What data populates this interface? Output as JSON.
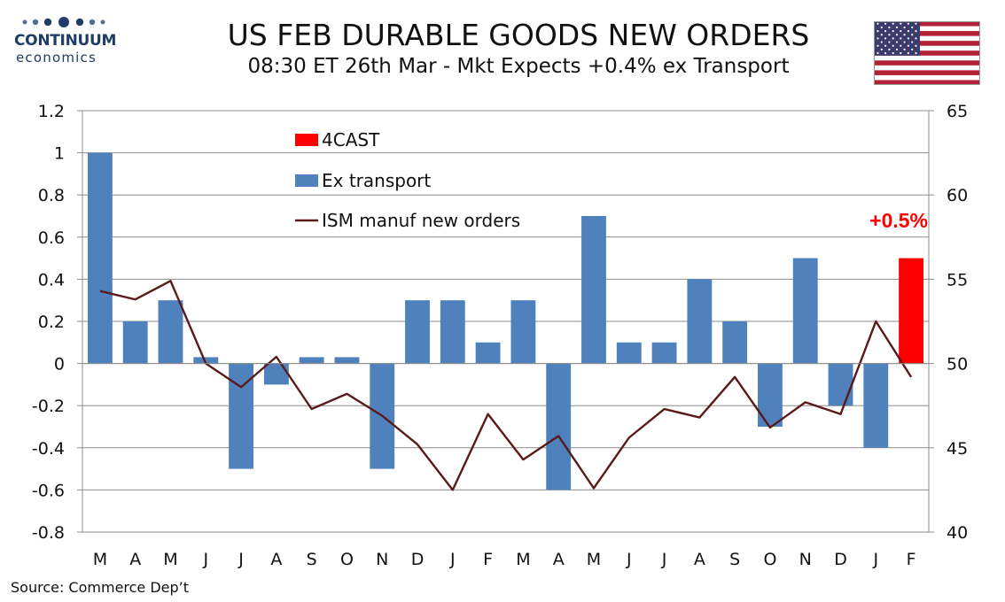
{
  "brand": {
    "name": "CONTINUUM",
    "sub": "economics"
  },
  "header": {
    "title": "US FEB DURABLE GOODS NEW ORDERS",
    "subtitle": "08:30 ET 26th Mar - Mkt Expects +0.4% ex Transport"
  },
  "source": "Source: Commerce Dep’t",
  "colors": {
    "ex_transport": "#4f81bd",
    "forecast": "#ff0000",
    "ism": "#5a1a1a",
    "annotation": "#ff0000"
  },
  "chart_data": {
    "type": "bar",
    "categories": [
      "M",
      "A",
      "M",
      "J",
      "J",
      "A",
      "S",
      "O",
      "N",
      "D",
      "J",
      "F",
      "M",
      "A",
      "M",
      "J",
      "J",
      "A",
      "S",
      "O",
      "N",
      "D",
      "J",
      "F"
    ],
    "y_left": {
      "min": -0.8,
      "max": 1.2,
      "ticks": [
        "1.2",
        "1",
        "0.8",
        "0.6",
        "0.4",
        "0.2",
        "0",
        "-0.2",
        "-0.4",
        "-0.6",
        "-0.8"
      ]
    },
    "y_right": {
      "min": 40,
      "max": 65,
      "ticks": [
        "65",
        "60",
        "55",
        "50",
        "45",
        "40"
      ]
    },
    "grid": true,
    "legend_position": "top-center",
    "series": [
      {
        "name": "4CAST",
        "type": "bar",
        "axis": "left",
        "values": [
          null,
          null,
          null,
          null,
          null,
          null,
          null,
          null,
          null,
          null,
          null,
          null,
          null,
          null,
          null,
          null,
          null,
          null,
          null,
          null,
          null,
          null,
          null,
          0.5
        ]
      },
      {
        "name": "Ex transport",
        "type": "bar",
        "axis": "left",
        "values": [
          1.0,
          0.2,
          0.3,
          0.03,
          -0.5,
          -0.1,
          0.03,
          0.03,
          -0.5,
          0.3,
          0.3,
          0.1,
          0.3,
          -0.6,
          0.7,
          0.1,
          0.1,
          0.4,
          0.2,
          -0.3,
          0.5,
          -0.2,
          -0.4,
          null
        ]
      },
      {
        "name": "ISM manuf new orders",
        "type": "line",
        "axis": "right",
        "values": [
          54.3,
          53.8,
          54.9,
          50.0,
          48.6,
          50.4,
          47.3,
          48.2,
          46.9,
          45.2,
          42.5,
          47.0,
          44.3,
          45.7,
          42.6,
          45.6,
          47.3,
          46.8,
          49.2,
          46.2,
          47.7,
          47.0,
          52.5,
          49.2
        ]
      }
    ],
    "annotations": [
      {
        "text": "+0.5%",
        "category_index": 23,
        "value": 0.5
      }
    ]
  }
}
